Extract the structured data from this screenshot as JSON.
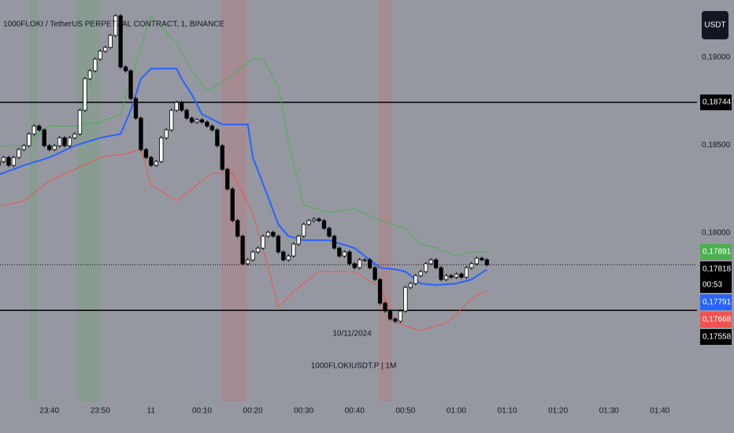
{
  "chart_data": {
    "type": "candlestick",
    "title": "1000FLOKI / TetherUS PERPETUAL CONTRACT, 1, BINANCE",
    "watermark": "1000FLOKIUSDT.P | 1M",
    "date_label": "10/11/2024",
    "currency_button": "USDT",
    "up_color": "#ffffff",
    "down_color": "#000000",
    "xlim": [
      -29.7,
      107.3
    ],
    "ylim": [
      0.17038,
      0.19328
    ],
    "xticks": [
      {
        "value": -20,
        "label": "23:40"
      },
      {
        "value": -10,
        "label": "23:50"
      },
      {
        "value": 0,
        "label": "11"
      },
      {
        "value": 10,
        "label": "00:10"
      },
      {
        "value": 20,
        "label": "00:20"
      },
      {
        "value": 30,
        "label": "00:30"
      },
      {
        "value": 40,
        "label": "00:40"
      },
      {
        "value": 50,
        "label": "00:50"
      },
      {
        "value": 60,
        "label": "01:00"
      },
      {
        "value": 70,
        "label": "01:10"
      },
      {
        "value": 80,
        "label": "01:20"
      },
      {
        "value": 90,
        "label": "01:30"
      },
      {
        "value": 100,
        "label": "01:40"
      }
    ],
    "yticks": [
      {
        "value": 0.19,
        "label": "0,19000"
      },
      {
        "value": 0.185,
        "label": "0,18500"
      },
      {
        "value": 0.18,
        "label": "0,18000"
      }
    ],
    "x": [
      -30,
      -29,
      -28,
      -27,
      -26,
      -25,
      -24,
      -23,
      -22,
      -21,
      -20,
      -19,
      -18,
      -17,
      -16,
      -15,
      -14,
      -13,
      -12,
      -11,
      -10,
      -9,
      -8,
      -7,
      -6,
      -5,
      -4,
      -3,
      -2,
      -1,
      0,
      1,
      2,
      3,
      4,
      5,
      6,
      7,
      8,
      9,
      10,
      11,
      12,
      13,
      14,
      15,
      16,
      17,
      18,
      19,
      20,
      21,
      22,
      23,
      24,
      25,
      26,
      27,
      28,
      29,
      30,
      31,
      32,
      33,
      34,
      35,
      36,
      37,
      38,
      39,
      40,
      41,
      42,
      43,
      44,
      45,
      46,
      47,
      48,
      49,
      50,
      51,
      52,
      53,
      54,
      55,
      56,
      57,
      58,
      59,
      60,
      61,
      62,
      63,
      64,
      65,
      66
    ],
    "open": [
      0.18385,
      0.18407,
      0.1843,
      0.18385,
      0.1843,
      0.18475,
      0.18497,
      0.18564,
      0.18609,
      0.18587,
      0.18497,
      0.18475,
      0.18497,
      0.18542,
      0.18497,
      0.18542,
      0.18564,
      0.18699,
      0.18879,
      0.18924,
      0.18991,
      0.19036,
      0.19058,
      0.19126,
      0.19238,
      0.18946,
      0.18924,
      0.18766,
      0.18654,
      0.18475,
      0.1843,
      0.18385,
      0.18407,
      0.18542,
      0.18587,
      0.18699,
      0.18744,
      0.18699,
      0.18654,
      0.18632,
      0.18645,
      0.18632,
      0.18609,
      0.18587,
      0.18497,
      0.18362,
      0.1825,
      0.1807,
      0.17981,
      0.17824,
      0.17846,
      0.17891,
      0.17913,
      0.17981,
      0.18003,
      0.17981,
      0.17891,
      0.17846,
      0.17868,
      0.17936,
      0.17981,
      0.18048,
      0.1807,
      0.18079,
      0.1807,
      0.18026,
      0.17981,
      0.17913,
      0.17868,
      0.17891,
      0.17824,
      0.17801,
      0.17846,
      0.17846,
      0.17801,
      0.17734,
      0.17599,
      0.17554,
      0.17509,
      0.17496,
      0.17554,
      0.17689,
      0.17711,
      0.17756,
      0.17779,
      0.17824,
      0.17846,
      0.17801,
      0.17734,
      0.17756,
      0.17747,
      0.17765,
      0.17747,
      0.17801,
      0.17824,
      0.17855,
      0.17846
    ],
    "high": [
      0.18417,
      0.1844,
      0.1844,
      0.1844,
      0.18485,
      0.18507,
      0.18574,
      0.18619,
      0.18619,
      0.18597,
      0.18507,
      0.18507,
      0.18552,
      0.18552,
      0.18552,
      0.18574,
      0.18709,
      0.18889,
      0.18934,
      0.19001,
      0.19046,
      0.19068,
      0.19136,
      0.19248,
      0.19248,
      0.18956,
      0.18934,
      0.18776,
      0.18664,
      0.18485,
      0.1844,
      0.18417,
      0.18552,
      0.18597,
      0.18709,
      0.18754,
      0.18754,
      0.18709,
      0.18664,
      0.18655,
      0.18655,
      0.18642,
      0.18619,
      0.18597,
      0.18507,
      0.18372,
      0.1826,
      0.1808,
      0.17991,
      0.17856,
      0.17901,
      0.17923,
      0.17991,
      0.18013,
      0.18013,
      0.17991,
      0.17901,
      0.17878,
      0.17946,
      0.17991,
      0.18058,
      0.1808,
      0.18089,
      0.18089,
      0.1808,
      0.18036,
      0.17991,
      0.17923,
      0.17901,
      0.17901,
      0.17834,
      0.17856,
      0.17856,
      0.17856,
      0.17811,
      0.17744,
      0.17609,
      0.17564,
      0.17519,
      0.17564,
      0.17699,
      0.17721,
      0.17766,
      0.17789,
      0.17834,
      0.17856,
      0.17856,
      0.17811,
      0.17766,
      0.17766,
      0.17775,
      0.17775,
      0.17811,
      0.17834,
      0.17865,
      0.17865,
      0.17856
    ],
    "low": [
      0.18375,
      0.18397,
      0.18375,
      0.18375,
      0.1842,
      0.18465,
      0.18487,
      0.18554,
      0.18577,
      0.18487,
      0.18465,
      0.18465,
      0.18487,
      0.18487,
      0.18487,
      0.18532,
      0.18554,
      0.18689,
      0.18869,
      0.18914,
      0.18981,
      0.19026,
      0.19048,
      0.19116,
      0.18936,
      0.18914,
      0.18756,
      0.18644,
      0.18465,
      0.1842,
      0.18375,
      0.18375,
      0.18397,
      0.18532,
      0.18577,
      0.18689,
      0.18689,
      0.18644,
      0.18622,
      0.18622,
      0.18622,
      0.18599,
      0.18577,
      0.18487,
      0.18352,
      0.1824,
      0.1806,
      0.17971,
      0.17814,
      0.17814,
      0.17836,
      0.17881,
      0.17903,
      0.17971,
      0.17971,
      0.17881,
      0.17836,
      0.17836,
      0.17858,
      0.17926,
      0.17971,
      0.18038,
      0.1806,
      0.1806,
      0.18016,
      0.17971,
      0.17903,
      0.17858,
      0.17858,
      0.17814,
      0.17791,
      0.17791,
      0.17836,
      0.17791,
      0.17724,
      0.17589,
      0.17544,
      0.17499,
      0.17486,
      0.17486,
      0.17544,
      0.17679,
      0.17701,
      0.17746,
      0.17769,
      0.17814,
      0.17791,
      0.17724,
      0.17724,
      0.17737,
      0.17737,
      0.17737,
      0.17737,
      0.17791,
      0.17814,
      0.17836,
      0.17808
    ],
    "close": [
      0.18407,
      0.1843,
      0.18385,
      0.1843,
      0.18475,
      0.18497,
      0.18564,
      0.18609,
      0.18587,
      0.18497,
      0.18475,
      0.18497,
      0.18542,
      0.18497,
      0.18542,
      0.18564,
      0.18699,
      0.18879,
      0.18924,
      0.18991,
      0.19036,
      0.19058,
      0.19126,
      0.19238,
      0.18946,
      0.18924,
      0.18766,
      0.18654,
      0.18475,
      0.1843,
      0.18385,
      0.18407,
      0.18542,
      0.18587,
      0.18699,
      0.18744,
      0.18699,
      0.18654,
      0.18632,
      0.18645,
      0.18632,
      0.18609,
      0.18587,
      0.18497,
      0.18362,
      0.1825,
      0.1807,
      0.17981,
      0.17824,
      0.17846,
      0.17891,
      0.17913,
      0.17981,
      0.18003,
      0.17981,
      0.17891,
      0.17846,
      0.17868,
      0.17936,
      0.17981,
      0.18048,
      0.1807,
      0.18079,
      0.1807,
      0.18026,
      0.17981,
      0.17913,
      0.17868,
      0.17891,
      0.17824,
      0.17801,
      0.17846,
      0.17846,
      0.17801,
      0.17734,
      0.17599,
      0.17554,
      0.17509,
      0.17496,
      0.17554,
      0.17689,
      0.17711,
      0.17756,
      0.17779,
      0.17824,
      0.17846,
      0.17801,
      0.17734,
      0.17756,
      0.17747,
      0.17765,
      0.17747,
      0.17801,
      0.17824,
      0.17855,
      0.17846,
      0.17818
    ],
    "lines": [
      {
        "color": "#2962ff",
        "x": [
          -30,
          -25,
          -20,
          -15,
          -10,
          -6,
          -4,
          -2,
          0,
          2,
          5,
          6,
          8,
          10,
          14,
          18,
          19,
          20,
          23,
          25,
          27,
          30,
          35,
          40,
          43,
          45,
          48,
          50,
          53,
          56,
          60,
          63,
          66
        ],
        "values": [
          0.18331,
          0.18385,
          0.1843,
          0.18497,
          0.18542,
          0.18564,
          0.18699,
          0.18879,
          0.18937,
          0.18937,
          0.18937,
          0.18879,
          0.18789,
          0.18677,
          0.18618,
          0.18618,
          0.18618,
          0.1843,
          0.18205,
          0.18048,
          0.17981,
          0.17958,
          0.17958,
          0.17913,
          0.17846,
          0.17801,
          0.17792,
          0.17779,
          0.17711,
          0.17702,
          0.17711,
          0.17734,
          0.17791
        ]
      },
      {
        "color": "#4caf50",
        "x": [
          -30,
          -25,
          -20,
          -15,
          -10,
          -6,
          -3,
          0,
          5,
          8,
          11,
          15,
          20,
          22,
          25,
          27,
          30,
          35,
          40,
          45,
          50,
          53,
          56,
          60,
          63,
          66
        ],
        "values": [
          0.18497,
          0.18497,
          0.18609,
          0.18609,
          0.18632,
          0.18677,
          0.18969,
          0.19238,
          0.19081,
          0.18924,
          0.18811,
          0.18879,
          0.18991,
          0.18991,
          0.18834,
          0.18519,
          0.1816,
          0.18115,
          0.18138,
          0.1807,
          0.18026,
          0.17936,
          0.17913,
          0.17868,
          0.17891,
          0.17891
        ]
      },
      {
        "color": "#f05350",
        "x": [
          -30,
          -25,
          -20,
          -15,
          -10,
          -5,
          -2,
          0,
          5,
          8,
          12,
          16,
          20,
          23,
          25,
          28,
          33,
          40,
          45,
          48,
          53,
          58,
          60,
          62,
          64,
          66
        ],
        "values": [
          0.18151,
          0.18183,
          0.18295,
          0.18362,
          0.1843,
          0.18452,
          0.18475,
          0.18273,
          0.18183,
          0.1825,
          0.1834,
          0.1834,
          0.18115,
          0.17801,
          0.17577,
          0.17666,
          0.17779,
          0.17779,
          0.17689,
          0.17487,
          0.17442,
          0.17487,
          0.17532,
          0.17599,
          0.17644,
          0.17668
        ]
      }
    ],
    "highlights": [
      {
        "x_range": [
          -23.8,
          -22.3
        ],
        "color": "#4caf50"
      },
      {
        "x_range": [
          -14.6,
          -10.1
        ],
        "color": "#4caf50"
      },
      {
        "x_range": [
          13.8,
          18.8
        ],
        "color": "#f05350"
      },
      {
        "x_range": [
          44.7,
          47.4
        ],
        "color": "#f05350"
      }
    ],
    "price_lines": [
      {
        "value": 0.18744,
        "style": "solid"
      },
      {
        "value": 0.17558,
        "style": "solid"
      },
      {
        "value": 0.17818,
        "style": "dotted"
      }
    ],
    "price_labels": [
      {
        "value": 0.18744,
        "label": "0,18744",
        "color": "#000000"
      },
      {
        "value": 0.17891,
        "label": "0,17891",
        "color": "#4caf50"
      },
      {
        "value": 0.17818,
        "label": "0,17818",
        "color": "#000000",
        "countdown": "00:53"
      },
      {
        "value": 0.17791,
        "label": "0,17791",
        "color": "#2962ff"
      },
      {
        "value": 0.17668,
        "label": "0,17668",
        "color": "#f05350"
      },
      {
        "value": 0.17558,
        "label": "0,17558",
        "color": "#000000"
      }
    ]
  }
}
